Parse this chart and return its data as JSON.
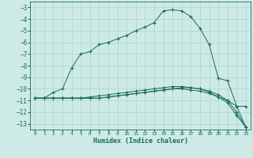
{
  "xlabel": "Humidex (Indice chaleur)",
  "bg_color": "#ceeae6",
  "line_color": "#1a6b5a",
  "grid_color": "#a8d5cf",
  "xlim": [
    -0.5,
    23.5
  ],
  "ylim": [
    -13.5,
    -2.5
  ],
  "yticks": [
    -3,
    -4,
    -5,
    -6,
    -7,
    -8,
    -9,
    -10,
    -11,
    -12,
    -13
  ],
  "xticks": [
    0,
    1,
    2,
    3,
    4,
    5,
    6,
    7,
    8,
    9,
    10,
    11,
    12,
    13,
    14,
    15,
    16,
    17,
    18,
    19,
    20,
    21,
    22,
    23
  ],
  "series": [
    {
      "x": [
        0,
        1,
        2,
        3,
        4,
        5,
        6,
        7,
        8,
        9,
        10,
        11,
        12,
        13,
        14,
        15,
        16,
        17,
        18,
        19,
        20,
        21,
        22,
        23
      ],
      "y": [
        -10.8,
        -10.8,
        -10.3,
        -10.0,
        -8.2,
        -7.0,
        -6.8,
        -6.2,
        -6.0,
        -5.7,
        -5.4,
        -5.0,
        -4.7,
        -4.3,
        -3.3,
        -3.2,
        -3.3,
        -3.8,
        -4.8,
        -6.2,
        -9.1,
        -9.3,
        -11.5,
        -11.5
      ]
    },
    {
      "x": [
        0,
        1,
        2,
        3,
        4,
        5,
        6,
        7,
        8,
        9,
        10,
        11,
        12,
        13,
        14,
        15,
        16,
        17,
        18,
        19,
        20,
        21,
        22,
        23
      ],
      "y": [
        -10.8,
        -10.8,
        -10.8,
        -10.8,
        -10.8,
        -10.8,
        -10.8,
        -10.8,
        -10.7,
        -10.6,
        -10.5,
        -10.4,
        -10.3,
        -10.2,
        -10.1,
        -10.0,
        -10.0,
        -10.1,
        -10.2,
        -10.4,
        -10.7,
        -11.0,
        -11.5,
        -13.3
      ]
    },
    {
      "x": [
        0,
        1,
        2,
        3,
        4,
        5,
        6,
        7,
        8,
        9,
        10,
        11,
        12,
        13,
        14,
        15,
        16,
        17,
        18,
        19,
        20,
        21,
        22,
        23
      ],
      "y": [
        -10.8,
        -10.8,
        -10.8,
        -10.8,
        -10.8,
        -10.8,
        -10.7,
        -10.6,
        -10.5,
        -10.4,
        -10.3,
        -10.2,
        -10.1,
        -10.0,
        -9.9,
        -9.8,
        -9.8,
        -9.9,
        -10.0,
        -10.3,
        -10.7,
        -11.2,
        -12.3,
        -13.3
      ]
    },
    {
      "x": [
        0,
        1,
        2,
        3,
        4,
        5,
        6,
        7,
        8,
        9,
        10,
        11,
        12,
        13,
        14,
        15,
        16,
        17,
        18,
        19,
        20,
        21,
        22,
        23
      ],
      "y": [
        -10.8,
        -10.8,
        -10.8,
        -10.8,
        -10.8,
        -10.8,
        -10.8,
        -10.8,
        -10.7,
        -10.6,
        -10.5,
        -10.4,
        -10.3,
        -10.2,
        -10.1,
        -10.0,
        -9.9,
        -9.9,
        -10.0,
        -10.2,
        -10.5,
        -11.0,
        -12.0,
        -13.3
      ]
    }
  ]
}
